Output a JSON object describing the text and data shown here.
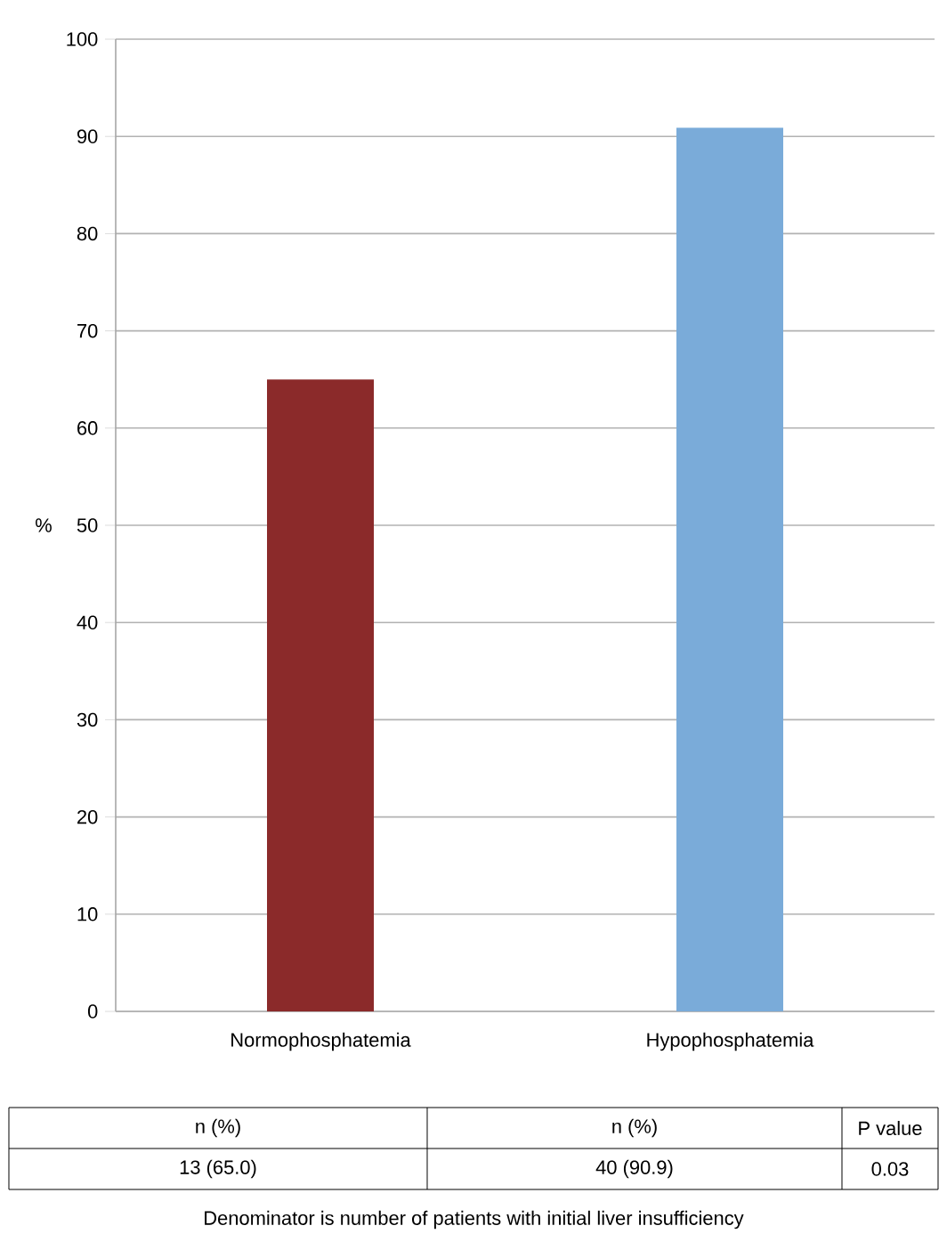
{
  "chart_data": {
    "type": "bar",
    "ylabel": "%",
    "categories": [
      "Normophosphatemia",
      "Hypophosphatemia"
    ],
    "values": [
      65.0,
      90.9
    ],
    "colors": [
      "#8b2a2a",
      "#7aabd9"
    ],
    "value_labels": [
      "13 (65.0)",
      "40 (90.9)"
    ],
    "ylim": [
      0,
      100
    ],
    "yticks": [
      0,
      10,
      20,
      30,
      40,
      50,
      60,
      70,
      80,
      90,
      100
    ],
    "grid": "y",
    "annotations": [
      "n (%)",
      "n (%)",
      "P value",
      "0.03",
      "Denominator is number of patients with initial liver insufficiency"
    ]
  }
}
